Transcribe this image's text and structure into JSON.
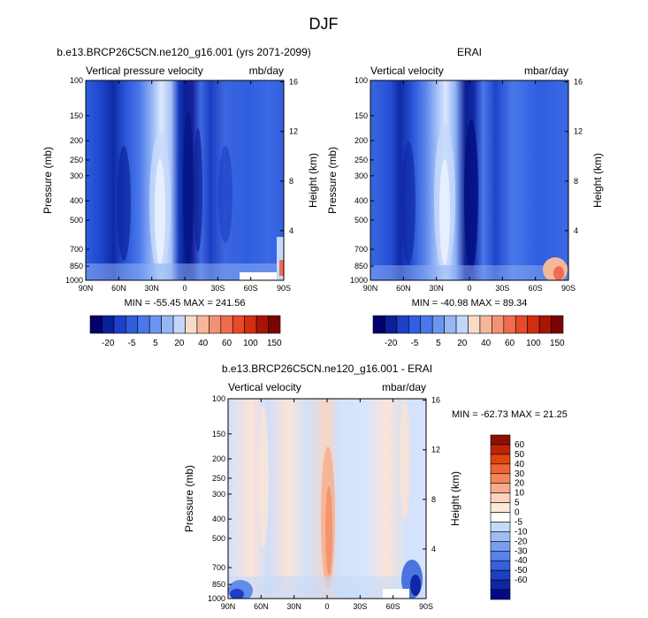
{
  "page_title": "DJF",
  "chart_data": [
    {
      "type": "heatmap",
      "panel": "model",
      "title": "b.e13.BRCP26C5CN.ne120_g16.001 (yrs 2071-2099)",
      "left_label": "Vertical pressure velocity",
      "units": "mb/day",
      "ylabel": "Pressure (mb)",
      "y2label": "Height (km)",
      "x_ticks": [
        "90N",
        "60N",
        "30N",
        "0",
        "30S",
        "60S",
        "90S"
      ],
      "y_ticks": [
        "100",
        "150",
        "200",
        "250",
        "300",
        "400",
        "500",
        "700",
        "850",
        "1000"
      ],
      "y2_ticks": [
        "16",
        "12",
        "8",
        "4"
      ],
      "stats": "MIN = -55.45  MAX = 241.56",
      "min": -55.45,
      "max": 241.56
    },
    {
      "type": "heatmap",
      "panel": "obs",
      "title": "ERAI",
      "left_label": "Vertical velocity",
      "units": "mbar/day",
      "ylabel": "Pressure (mb)",
      "y2label": "Height (km)",
      "x_ticks": [
        "90N",
        "60N",
        "30N",
        "0",
        "30S",
        "60S",
        "90S"
      ],
      "y_ticks": [
        "100",
        "150",
        "200",
        "250",
        "300",
        "400",
        "500",
        "700",
        "850",
        "1000"
      ],
      "y2_ticks": [
        "16",
        "12",
        "8",
        "4"
      ],
      "stats": "MIN = -40.98  MAX =  89.34",
      "min": -40.98,
      "max": 89.34
    },
    {
      "type": "heatmap",
      "panel": "diff",
      "title": "b.e13.BRCP26C5CN.ne120_g16.001 - ERAI",
      "left_label": "Vertical velocity",
      "units": "mbar/day",
      "ylabel": "Pressure (mb)",
      "y2label": "Height (km)",
      "x_ticks": [
        "90N",
        "60N",
        "30N",
        "0",
        "30S",
        "60S",
        "90S"
      ],
      "y_ticks": [
        "100",
        "150",
        "200",
        "250",
        "300",
        "400",
        "500",
        "700",
        "850",
        "1000"
      ],
      "y2_ticks": [
        "16",
        "12",
        "8",
        "4"
      ],
      "stats": "MIN = -62.73  MAX = 21.25",
      "min": -62.73,
      "max": 21.25
    }
  ],
  "colorbars": {
    "main_labels": [
      "-20",
      "-5",
      "5",
      "20",
      "40",
      "60",
      "100",
      "150"
    ],
    "main_colors": [
      "#02006b",
      "#0a1f9a",
      "#1e3fc8",
      "#2f5ee0",
      "#4a78ea",
      "#6c95f0",
      "#96b6f5",
      "#c3d6fa",
      "#f6dcc8",
      "#f4b79a",
      "#f29275",
      "#ef6c4f",
      "#e64a2a",
      "#d12e12",
      "#aa1404",
      "#7c0303"
    ],
    "diff_labels": [
      "60",
      "50",
      "40",
      "30",
      "20",
      "10",
      "5",
      "0",
      "-5",
      "-10",
      "-20",
      "-30",
      "-40",
      "-50",
      "-60"
    ],
    "diff_colors": [
      "#8c0f02",
      "#bd2405",
      "#e0450f",
      "#f06434",
      "#f2875c",
      "#f6ac8c",
      "#fbd2be",
      "#fce8dc",
      "#ffffff",
      "#c6daf8",
      "#9ebdf3",
      "#7a9eee",
      "#5782e8",
      "#3460dc",
      "#1d3fc6",
      "#0f26a6",
      "#040a86"
    ]
  }
}
